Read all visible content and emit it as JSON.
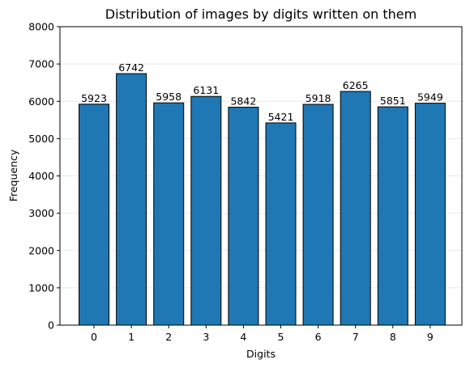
{
  "chart_data": {
    "type": "bar",
    "title": "Distribution of images by digits written on them",
    "xlabel": "Digits",
    "ylabel": "Frequency",
    "categories": [
      "0",
      "1",
      "2",
      "3",
      "4",
      "5",
      "6",
      "7",
      "8",
      "9"
    ],
    "values": [
      5923,
      6742,
      5958,
      6131,
      5842,
      5421,
      5918,
      6265,
      5851,
      5949
    ],
    "ylim": [
      0,
      8000
    ],
    "yticks": [
      0,
      1000,
      2000,
      3000,
      4000,
      5000,
      6000,
      7000,
      8000
    ],
    "grid": "horizontal",
    "bar_color": "#1f77b4",
    "bar_edge_color": "#000000",
    "grid_color": "#e8e8e8"
  }
}
